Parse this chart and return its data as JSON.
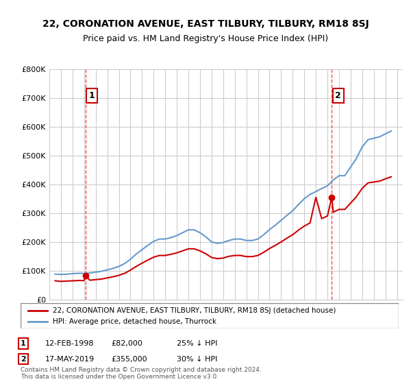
{
  "title": "22, CORONATION AVENUE, EAST TILBURY, TILBURY, RM18 8SJ",
  "subtitle": "Price paid vs. HM Land Registry's House Price Index (HPI)",
  "ylim": [
    0,
    800000
  ],
  "yticks": [
    0,
    100000,
    200000,
    300000,
    400000,
    500000,
    600000,
    700000,
    800000
  ],
  "ytick_labels": [
    "£0",
    "£100K",
    "£200K",
    "£300K",
    "£400K",
    "£500K",
    "£600K",
    "£700K",
    "£800K"
  ],
  "sale1": {
    "date": 1998.12,
    "price": 82000,
    "label": "1",
    "annotation": "12-FEB-1998",
    "amount": "£82,000",
    "hpi": "25% ↓ HPI"
  },
  "sale2": {
    "date": 2019.37,
    "price": 355000,
    "label": "2",
    "annotation": "17-MAY-2019",
    "amount": "£355,000",
    "hpi": "30% ↓ HPI"
  },
  "red_line_color": "#cc0000",
  "blue_line_color": "#6699cc",
  "dashed_line_color": "#ff4444",
  "background_color": "#ffffff",
  "grid_color": "#cccccc",
  "legend_label_red": "22, CORONATION AVENUE, EAST TILBURY, TILBURY, RM18 8SJ (detached house)",
  "legend_label_blue": "HPI: Average price, detached house, Thurrock",
  "footer": "Contains HM Land Registry data © Crown copyright and database right 2024.\nThis data is licensed under the Open Government Licence v3.0.",
  "hpi_data": {
    "years": [
      1995.5,
      1996.0,
      1996.5,
      1997.0,
      1997.5,
      1998.0,
      1998.5,
      1999.0,
      1999.5,
      2000.0,
      2000.5,
      2001.0,
      2001.5,
      2002.0,
      2002.5,
      2003.0,
      2003.5,
      2004.0,
      2004.5,
      2005.0,
      2005.5,
      2006.0,
      2006.5,
      2007.0,
      2007.5,
      2008.0,
      2008.5,
      2009.0,
      2009.5,
      2010.0,
      2010.5,
      2011.0,
      2011.5,
      2012.0,
      2012.5,
      2013.0,
      2013.5,
      2014.0,
      2014.5,
      2015.0,
      2015.5,
      2016.0,
      2016.5,
      2017.0,
      2017.5,
      2018.0,
      2018.5,
      2019.0,
      2019.5,
      2020.0,
      2020.5,
      2021.0,
      2021.5,
      2022.0,
      2022.5,
      2023.0,
      2023.5,
      2024.0,
      2024.5
    ],
    "values": [
      88000,
      87000,
      88000,
      90000,
      91000,
      91000,
      92000,
      95000,
      98000,
      103000,
      108000,
      115000,
      125000,
      140000,
      158000,
      173000,
      188000,
      202000,
      210000,
      210000,
      215000,
      222000,
      232000,
      242000,
      242000,
      232000,
      218000,
      200000,
      195000,
      198000,
      205000,
      210000,
      210000,
      205000,
      205000,
      210000,
      225000,
      243000,
      258000,
      275000,
      292000,
      308000,
      330000,
      350000,
      365000,
      375000,
      385000,
      395000,
      415000,
      430000,
      430000,
      460000,
      490000,
      530000,
      555000,
      560000,
      565000,
      575000,
      585000
    ]
  },
  "red_data": {
    "years": [
      1995.5,
      1996.0,
      1996.5,
      1997.0,
      1997.5,
      1998.0,
      1998.12,
      1998.5,
      1999.0,
      1999.5,
      2000.0,
      2000.5,
      2001.0,
      2001.5,
      2002.0,
      2002.5,
      2003.0,
      2003.5,
      2004.0,
      2004.5,
      2005.0,
      2005.5,
      2006.0,
      2006.5,
      2007.0,
      2007.5,
      2008.0,
      2008.5,
      2009.0,
      2009.5,
      2010.0,
      2010.5,
      2011.0,
      2011.5,
      2012.0,
      2012.5,
      2013.0,
      2013.5,
      2014.0,
      2014.5,
      2015.0,
      2015.5,
      2016.0,
      2016.5,
      2017.0,
      2017.5,
      2018.0,
      2018.5,
      2019.0,
      2019.37,
      2019.5,
      2020.0,
      2020.5,
      2021.0,
      2021.5,
      2022.0,
      2022.5,
      2023.0,
      2023.5,
      2024.0,
      2024.5
    ],
    "values": [
      65000,
      63000,
      64000,
      65000,
      66000,
      66000,
      82000,
      67000,
      69000,
      71000,
      75000,
      79000,
      84000,
      91000,
      102000,
      115000,
      126000,
      137000,
      147000,
      153000,
      153000,
      157000,
      162000,
      169000,
      176000,
      176000,
      169000,
      159000,
      146000,
      142000,
      144000,
      150000,
      153000,
      153000,
      149000,
      149000,
      153000,
      164000,
      177000,
      188000,
      200000,
      213000,
      225000,
      241000,
      255000,
      266000,
      355000,
      281000,
      290000,
      355000,
      303000,
      313000,
      313000,
      335000,
      357000,
      386000,
      405000,
      408000,
      411000,
      419000,
      426000
    ]
  }
}
